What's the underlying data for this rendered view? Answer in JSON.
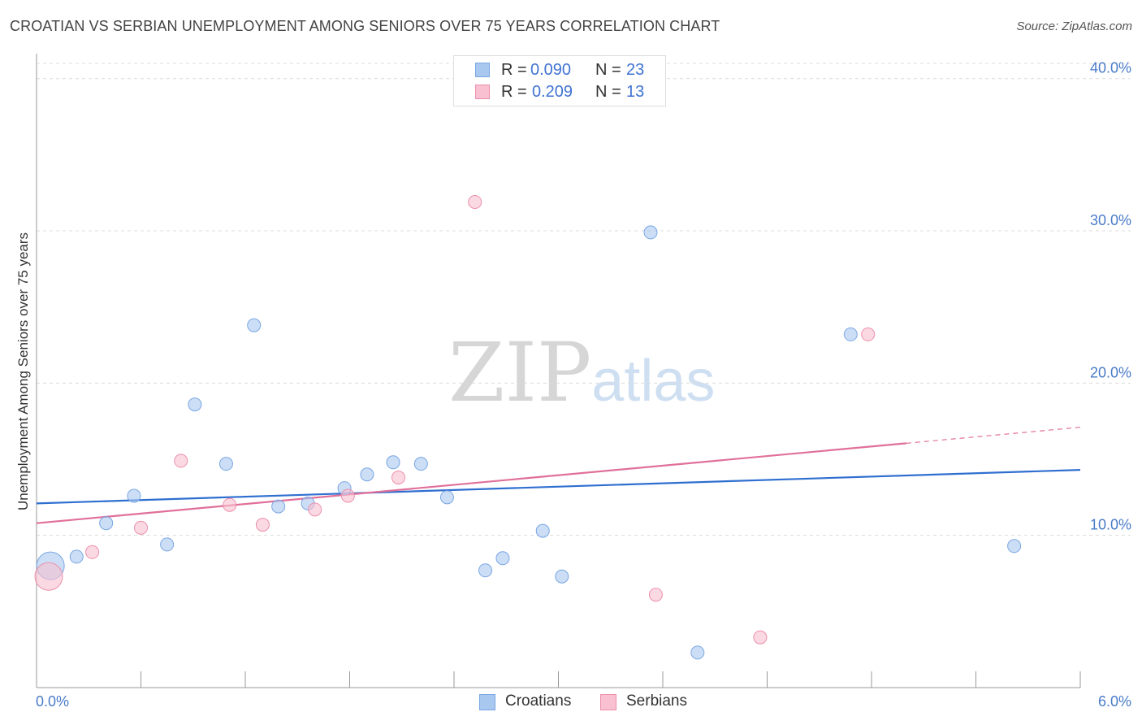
{
  "header": {
    "title": "CROATIAN VS SERBIAN UNEMPLOYMENT AMONG SENIORS OVER 75 YEARS CORRELATION CHART",
    "source": "Source: ZipAtlas.com"
  },
  "watermark": {
    "zip": "ZIP",
    "atlas": "atlas"
  },
  "legend": {
    "rows": [
      {
        "r_label": "R =",
        "r_value": "0.090",
        "n_label": "N =",
        "n_value": "23",
        "color": "#a9c8f0",
        "border": "#7aa6e3"
      },
      {
        "r_label": "R =",
        "r_value": "0.209",
        "n_label": "N =",
        "n_value": "13",
        "color": "#f8c0d0",
        "border": "#ec8fab"
      }
    ],
    "bottom": [
      {
        "label": "Croatians",
        "color": "#a9c8f0",
        "border": "#7aa6e3"
      },
      {
        "label": "Serbians",
        "color": "#f8c0d0",
        "border": "#ec8fab"
      }
    ]
  },
  "chart_data": {
    "type": "scatter",
    "title": "CROATIAN VS SERBIAN UNEMPLOYMENT AMONG SENIORS OVER 75 YEARS CORRELATION CHART",
    "xlabel": "",
    "ylabel": "Unemployment Among Seniors over 75 years",
    "xlim": [
      0,
      6
    ],
    "ylim": [
      0,
      41
    ],
    "x_tick_labels": [
      {
        "value": 0,
        "label": "0.0%"
      },
      {
        "value": 6,
        "label": "6.0%"
      }
    ],
    "y_ticks": [
      {
        "value": 10,
        "label": "10.0%"
      },
      {
        "value": 20,
        "label": "20.0%"
      },
      {
        "value": 30,
        "label": "30.0%"
      },
      {
        "value": 40,
        "label": "40.0%"
      }
    ],
    "grid": true,
    "series": [
      {
        "name": "Croatians",
        "color": "#a9c8f0",
        "stroke": "#7aa6e3",
        "trend_color": "#2f6fd0",
        "trend": {
          "x": [
            0,
            6
          ],
          "y": [
            12.1,
            14.3
          ],
          "solid_until": 6
        },
        "points": [
          {
            "x": 0.08,
            "y": 8.0,
            "size": "large"
          },
          {
            "x": 0.23,
            "y": 8.6
          },
          {
            "x": 0.4,
            "y": 10.8
          },
          {
            "x": 0.56,
            "y": 12.6
          },
          {
            "x": 0.75,
            "y": 9.4
          },
          {
            "x": 0.91,
            "y": 18.6
          },
          {
            "x": 1.09,
            "y": 14.7
          },
          {
            "x": 1.25,
            "y": 23.8
          },
          {
            "x": 1.39,
            "y": 11.9
          },
          {
            "x": 1.56,
            "y": 12.1
          },
          {
            "x": 1.77,
            "y": 13.1
          },
          {
            "x": 1.9,
            "y": 14.0
          },
          {
            "x": 2.05,
            "y": 14.8
          },
          {
            "x": 2.21,
            "y": 14.7
          },
          {
            "x": 2.36,
            "y": 12.5
          },
          {
            "x": 2.58,
            "y": 7.7
          },
          {
            "x": 2.68,
            "y": 8.5
          },
          {
            "x": 2.91,
            "y": 10.3
          },
          {
            "x": 3.02,
            "y": 7.3
          },
          {
            "x": 3.53,
            "y": 29.9
          },
          {
            "x": 3.8,
            "y": 2.3
          },
          {
            "x": 4.68,
            "y": 23.2
          },
          {
            "x": 5.62,
            "y": 9.3
          }
        ]
      },
      {
        "name": "Serbians",
        "color": "#f8c0d0",
        "stroke": "#ec8fab",
        "trend_color": "#e0709a",
        "trend": {
          "x": [
            0,
            6
          ],
          "y": [
            10.8,
            17.1
          ],
          "solid_until": 5.0
        },
        "points": [
          {
            "x": 0.07,
            "y": 7.3,
            "size": "large"
          },
          {
            "x": 0.32,
            "y": 8.9
          },
          {
            "x": 0.6,
            "y": 10.5
          },
          {
            "x": 0.83,
            "y": 14.9
          },
          {
            "x": 1.11,
            "y": 12.0
          },
          {
            "x": 1.3,
            "y": 10.7
          },
          {
            "x": 1.6,
            "y": 11.7
          },
          {
            "x": 1.79,
            "y": 12.6
          },
          {
            "x": 2.08,
            "y": 13.8
          },
          {
            "x": 2.52,
            "y": 31.9
          },
          {
            "x": 3.56,
            "y": 6.1
          },
          {
            "x": 4.16,
            "y": 3.3
          },
          {
            "x": 4.78,
            "y": 23.2
          }
        ]
      }
    ]
  }
}
